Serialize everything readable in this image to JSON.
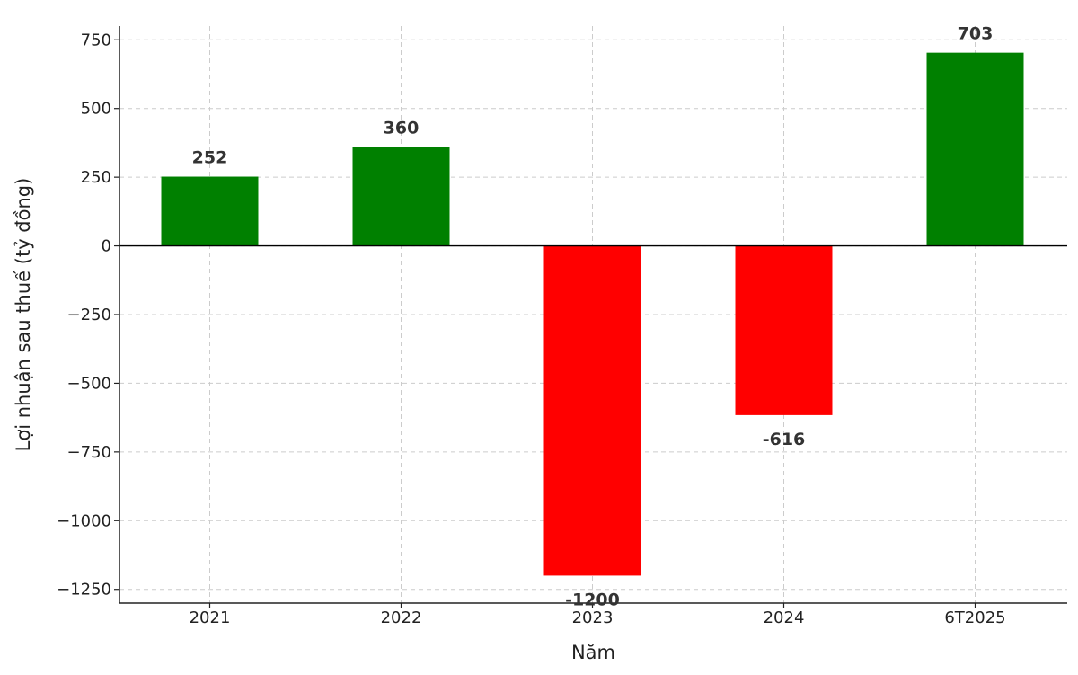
{
  "chart_data": {
    "type": "bar",
    "categories": [
      "2021",
      "2022",
      "2023",
      "2024",
      "6T2025"
    ],
    "values": [
      252,
      360,
      -1200,
      -616,
      703
    ],
    "value_labels": [
      "252",
      "360",
      "-1200",
      "-616",
      "703"
    ],
    "colors": [
      "#008000",
      "#008000",
      "#ff0000",
      "#ff0000",
      "#008000"
    ],
    "positive_color": "#008000",
    "negative_color": "#ff0000",
    "xlabel": "Năm",
    "ylabel": "Lợi nhuận sau thuế (tỷ đồng)",
    "ylim": [
      -1300,
      800
    ],
    "yticks": [
      750,
      500,
      250,
      0,
      -250,
      -500,
      -750,
      -1000,
      -1250
    ],
    "ytick_labels": [
      "750",
      "500",
      "250",
      "0",
      "−250",
      "−500",
      "−750",
      "−1000",
      "−1250"
    ],
    "grid": true
  }
}
